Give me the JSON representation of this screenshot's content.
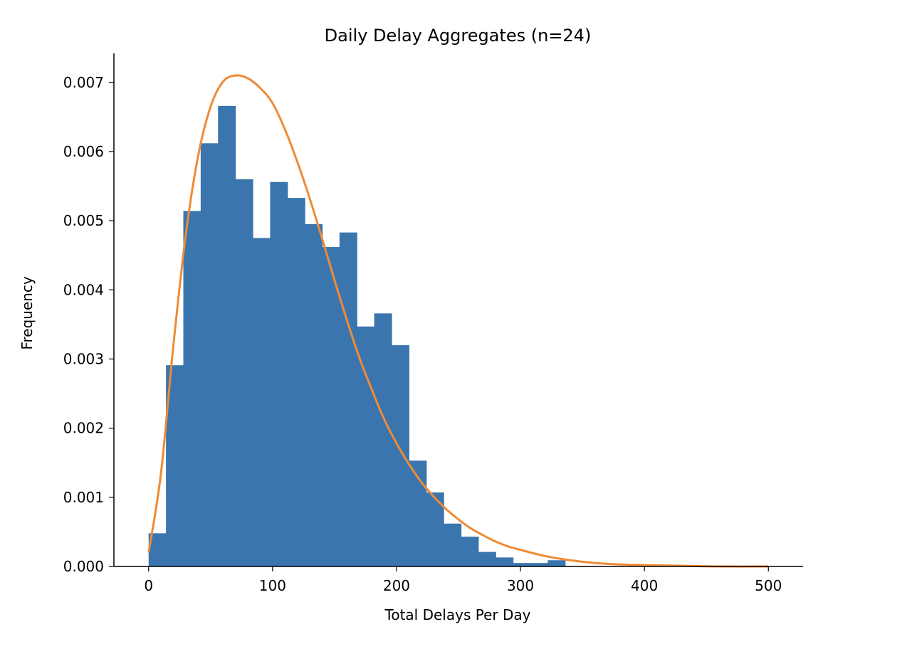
{
  "chart_data": {
    "type": "bar",
    "subtype": "histogram-with-density-curve",
    "title": "Daily Delay Aggregates (n=24)",
    "xlabel": "Total Delays Per Day",
    "ylabel": "Frequency",
    "xlim": [
      -28,
      528
    ],
    "ylim": [
      0,
      0.00742
    ],
    "xticks": [
      0,
      100,
      200,
      300,
      400,
      500
    ],
    "xtick_labels": [
      "0",
      "100",
      "200",
      "300",
      "400",
      "500"
    ],
    "yticks": [
      0.0,
      0.001,
      0.002,
      0.003,
      0.004,
      0.005,
      0.006,
      0.007
    ],
    "ytick_labels": [
      "0.000",
      "0.001",
      "0.002",
      "0.003",
      "0.004",
      "0.005",
      "0.006",
      "0.007"
    ],
    "grid": false,
    "spines": [
      "left",
      "bottom"
    ],
    "bar_color": "#3a75ae",
    "curve_color": "#ef8b35",
    "bins": {
      "edges": [
        0,
        14,
        28,
        42,
        56,
        70,
        84,
        98,
        112,
        126,
        140,
        154,
        168,
        182,
        196,
        210,
        224,
        238,
        252,
        266,
        280,
        294,
        308,
        322,
        336
      ],
      "values": [
        0.00048,
        0.00291,
        0.00514,
        0.00612,
        0.00666,
        0.0056,
        0.00475,
        0.00556,
        0.00533,
        0.00495,
        0.00462,
        0.00483,
        0.00347,
        0.00366,
        0.0032,
        0.00153,
        0.00107,
        0.00062,
        0.00043,
        0.00021,
        0.00013,
        5e-05,
        5e-05,
        9e-05
      ]
    },
    "curve": {
      "x": [
        0,
        10,
        20,
        30,
        40,
        50,
        60,
        70,
        80,
        90,
        100,
        110,
        120,
        130,
        140,
        150,
        160,
        170,
        180,
        190,
        200,
        210,
        220,
        230,
        240,
        250,
        260,
        270,
        280,
        290,
        300,
        320,
        340,
        360,
        380,
        400,
        430,
        460,
        500
      ],
      "y": [
        0.0002,
        0.00135,
        0.0032,
        0.0048,
        0.00594,
        0.00665,
        0.00701,
        0.0071,
        0.00706,
        0.00692,
        0.0067,
        0.00632,
        0.00585,
        0.00532,
        0.00474,
        0.00414,
        0.00356,
        0.00302,
        0.00256,
        0.00213,
        0.00178,
        0.00148,
        0.00122,
        0.00101,
        0.00083,
        0.00068,
        0.00055,
        0.00045,
        0.00036,
        0.00029,
        0.00024,
        0.00015,
        9e-05,
        5e-05,
        3e-05,
        2e-05,
        1e-05,
        0.0,
        0.0
      ]
    }
  }
}
